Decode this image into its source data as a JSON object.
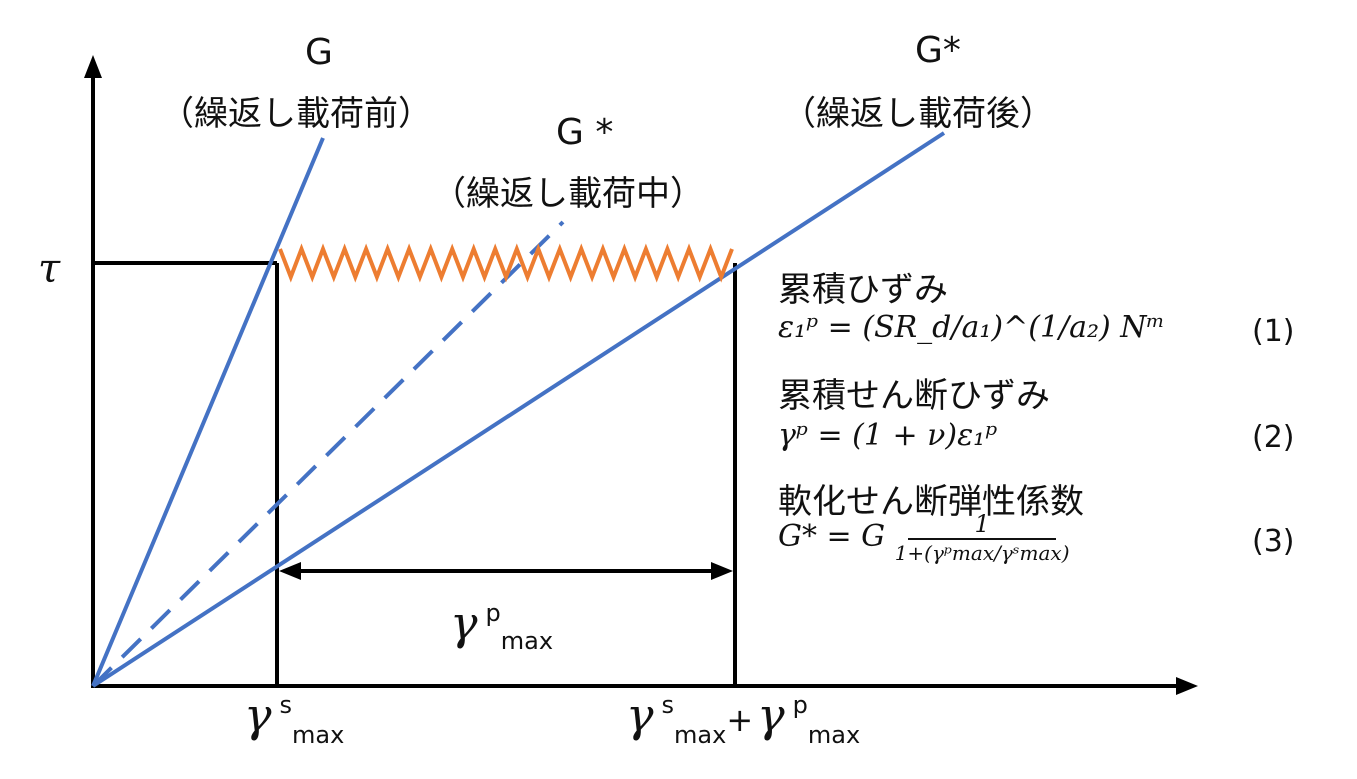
{
  "axes": {
    "y_symbol": "τ"
  },
  "lines": {
    "g_before": {
      "label": "G",
      "caption": "（繰返し載荷前）"
    },
    "g_during": {
      "label": "G *",
      "caption": "（繰返し載荷中）"
    },
    "g_after": {
      "label": "G*",
      "caption": "（繰返し載荷後）"
    }
  },
  "x_ticks": {
    "gamma_s_max": {
      "gamma": "γ",
      "sup": "s",
      "sub": "max"
    },
    "gamma_sum": {
      "gamma1": "γ",
      "sup1": "s",
      "sub1": "max",
      "plus": "+",
      "gamma2": "γ",
      "sup2": "p",
      "sub2": "max"
    }
  },
  "dimension": {
    "gamma": "γ",
    "sup": "p",
    "sub": "max"
  },
  "equations": [
    {
      "heading": "累積ひずみ",
      "formula": "ε₁ᵖ = (SR_d/a₁)^(1/a₂) Nᵐ",
      "number": "(1)"
    },
    {
      "heading": "累積せん断ひずみ",
      "formula": "γᵖ = (1 + ν)ε₁ᵖ",
      "number": "(2)"
    },
    {
      "heading": "軟化せん断弾性係数",
      "formula_lhs": "G* = G",
      "frac_num": "1",
      "frac_den": "1+(γᵖmax/γˢmax)",
      "number": "(3)"
    }
  ],
  "colors": {
    "axis": "#000000",
    "blue_line": "#4472c4",
    "orange_wave": "#ed7d31"
  }
}
